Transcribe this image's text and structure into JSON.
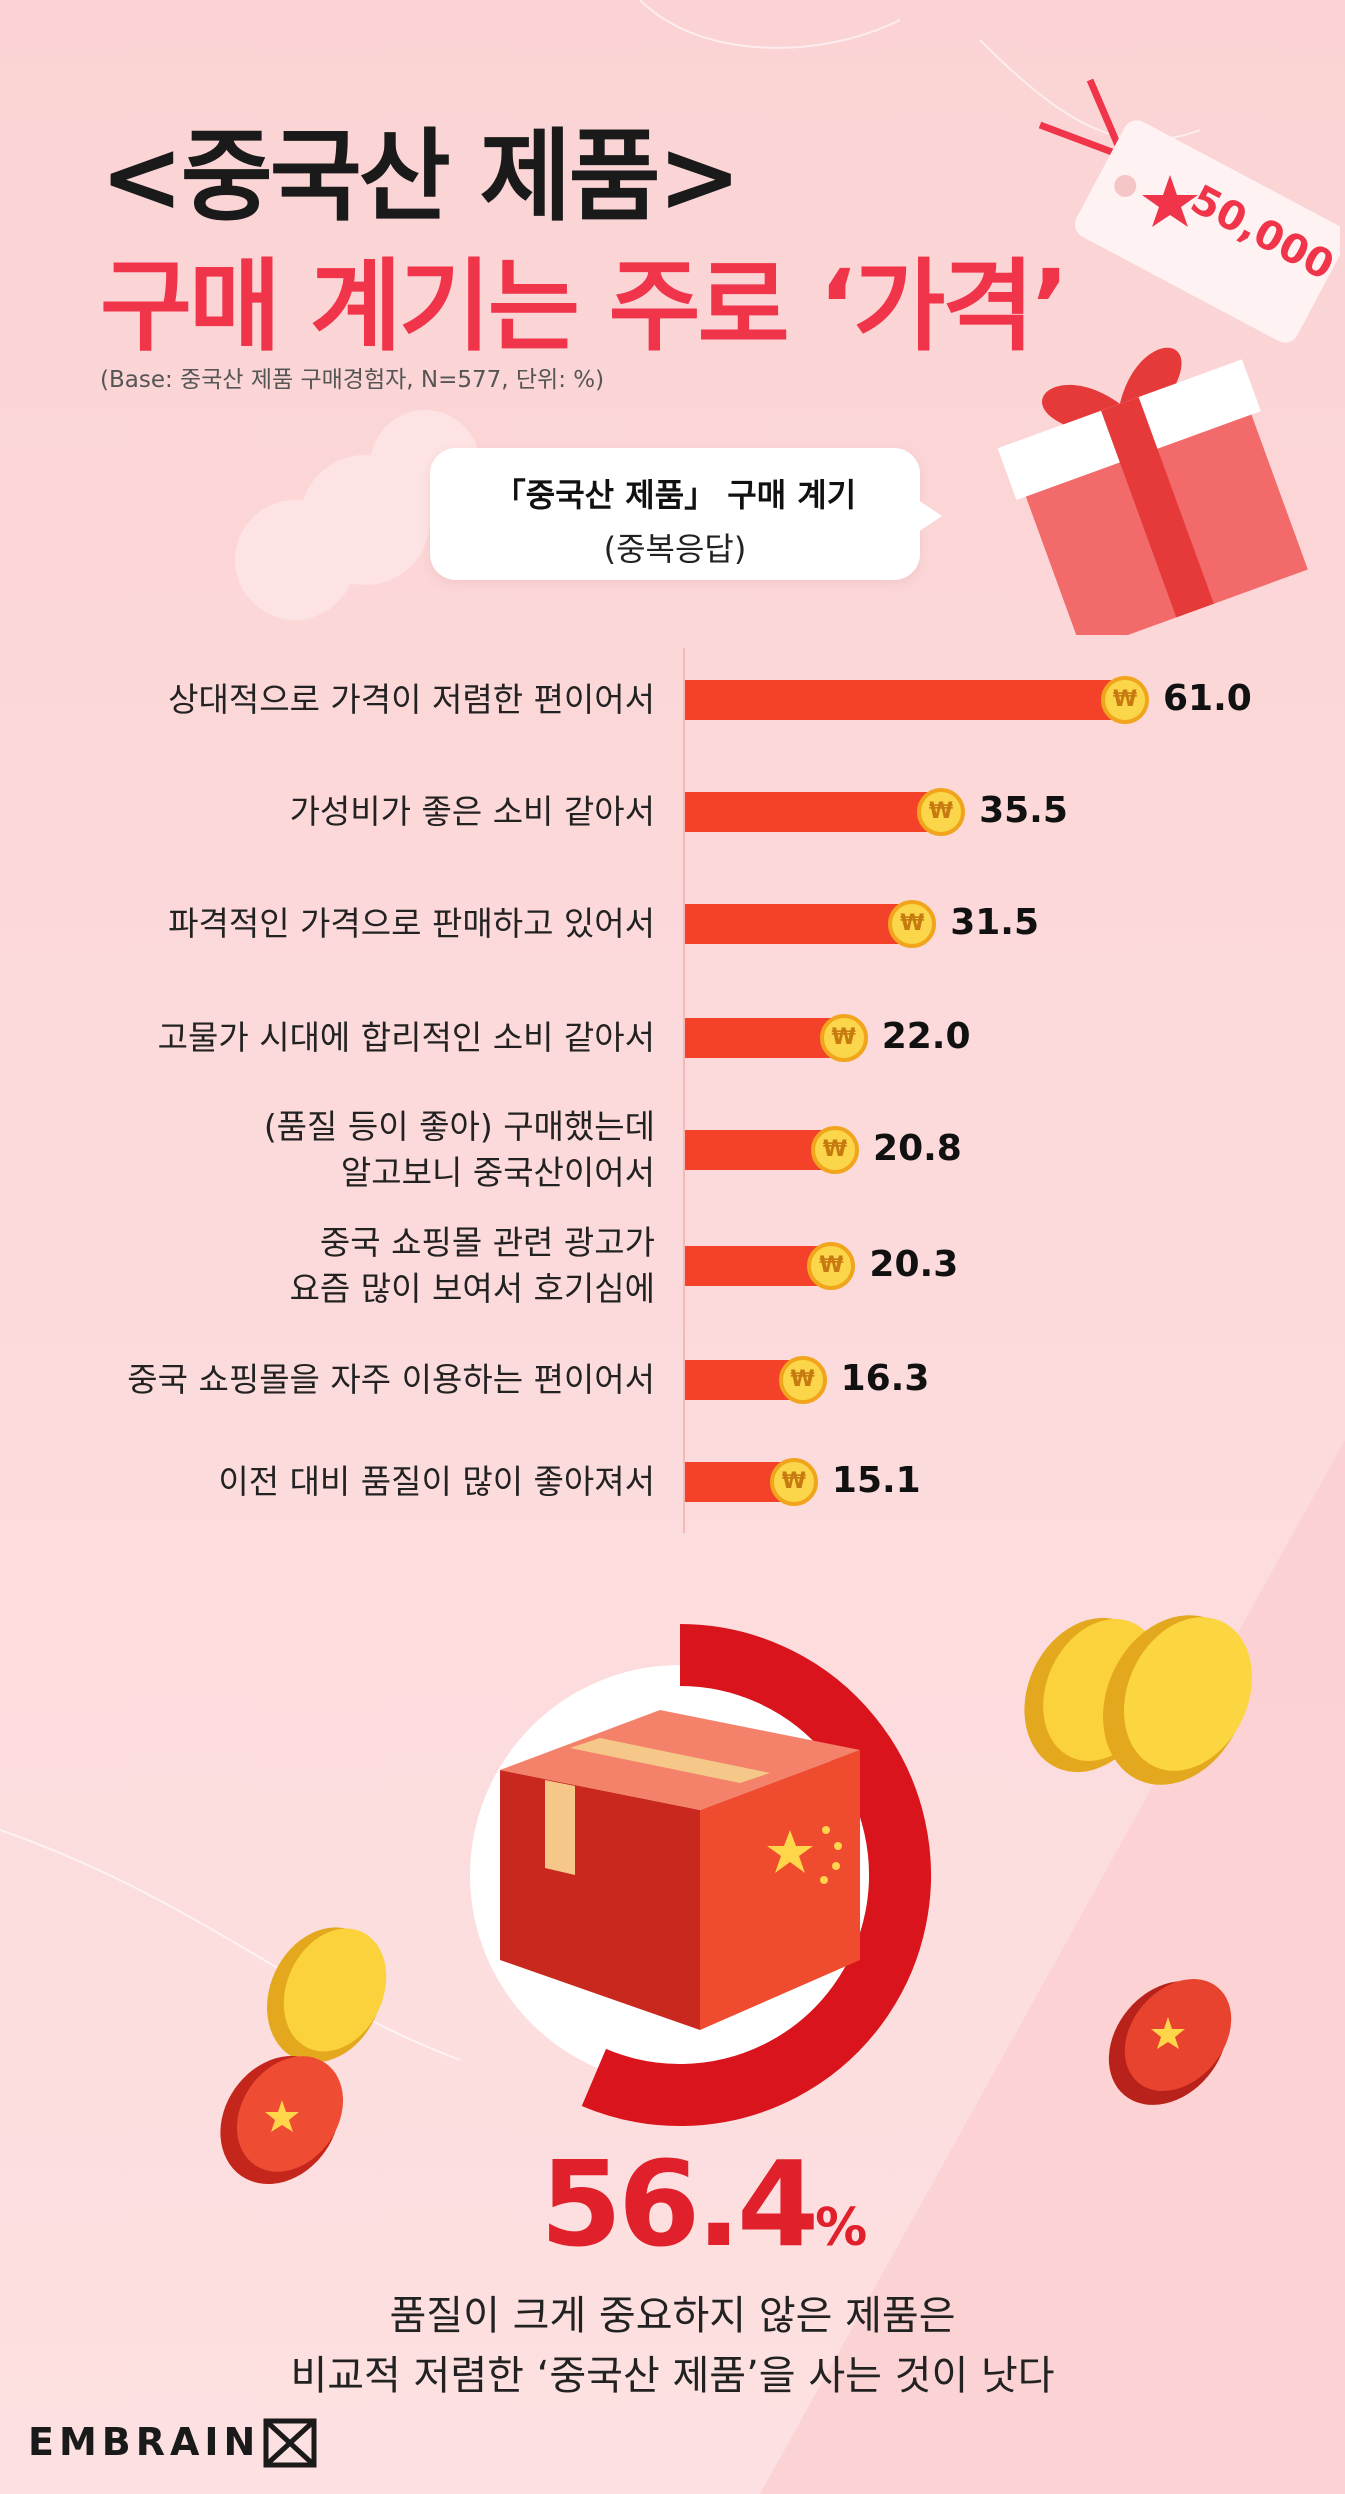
{
  "header": {
    "title_line1": "<중국산 제품>",
    "title_line2": "구매 계기는 주로 ‘가격’",
    "base_note": "(Base: 중국산 제품 구매경험자, N=577, 단위: %)"
  },
  "price_tag": {
    "label": "50,000"
  },
  "chart_title": {
    "line1": "「중국산 제품」 구매 계기",
    "line2": "(중복응답)"
  },
  "coin_symbol": "₩",
  "chart_data": {
    "type": "bar",
    "orientation": "horizontal",
    "title": "「중국산 제품」 구매 계기 (중복응답)",
    "categories": [
      [
        "상대적으로 가격이 저렴한 편이어서"
      ],
      [
        "가성비가 좋은 소비 같아서"
      ],
      [
        "파격적인 가격으로 판매하고 있어서"
      ],
      [
        "고물가 시대에 합리적인 소비 같아서"
      ],
      [
        "(품질 등이 좋아) 구매했는데",
        "알고보니 중국산이어서"
      ],
      [
        "중국 쇼핑몰 관련 광고가",
        "요즘 많이 보여서 호기심에"
      ],
      [
        "중국 쇼핑몰을 자주 이용하는 편이어서"
      ],
      [
        "이전 대비 품질이 많이 좋아져서"
      ]
    ],
    "values": [
      61.0,
      35.5,
      31.5,
      22.0,
      20.8,
      20.3,
      16.3,
      15.1
    ],
    "value_labels": [
      "61.0",
      "35.5",
      "31.5",
      "22.0",
      "20.8",
      "20.3",
      "16.3",
      "15.1"
    ],
    "bar_color": "#f4422a",
    "xlim": [
      0,
      61.0
    ]
  },
  "highlight": {
    "value": "56.4",
    "unit": "%",
    "ring_fraction": 0.564,
    "ring_color": "#d9141c",
    "line1": "품질이 크게 중요하지 않은 제품은",
    "line2": "비교적 저렴한 ‘중국산 제품’을 사는 것이 낫다"
  },
  "brand": {
    "name": "EMBRAIN"
  },
  "colors": {
    "accent": "#f0344a",
    "bar": "#f4422a",
    "coin": "#fbd64a"
  }
}
